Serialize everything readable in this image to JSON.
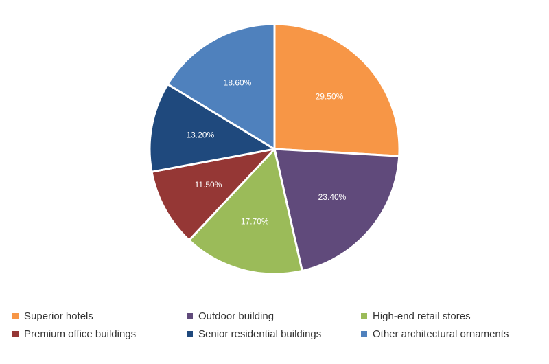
{
  "chart_data": {
    "type": "pie",
    "categories": [
      "Superior hotels",
      "Outdoor building",
      "High-end retail stores",
      "Premium office buildings",
      "Senior residential buildings",
      "Other architectural ornaments"
    ],
    "values": [
      29.5,
      23.4,
      17.7,
      11.5,
      13.2,
      18.6
    ],
    "labels": [
      "29.50%",
      "23.40%",
      "17.70%",
      "11.50%",
      "13.20%",
      "18.60%"
    ],
    "colors": [
      "#F79646",
      "#604A7B",
      "#9BBB59",
      "#953735",
      "#1F497D",
      "#4F81BD"
    ],
    "start": "12 o'clock",
    "direction": "clockwise",
    "legend_position": "bottom"
  }
}
